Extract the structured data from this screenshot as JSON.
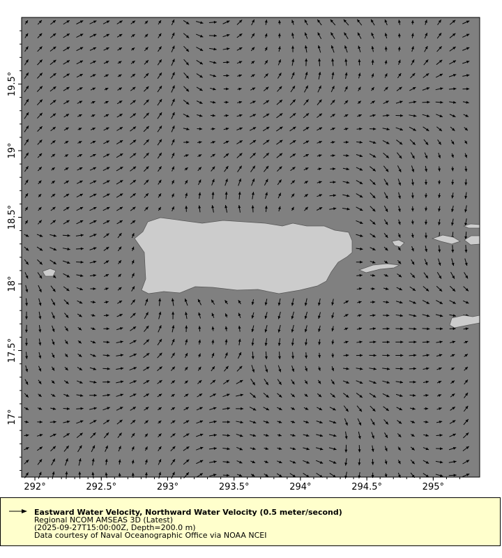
{
  "chart_data": {
    "type": "vector-map",
    "title": "Eastward Water Velocity, Northward Water Velocity (0.5 meter/second)",
    "x_axis": {
      "range": [
        291.9,
        295.35
      ],
      "ticks": [
        292,
        292.5,
        293,
        293.5,
        294,
        294.5,
        295
      ],
      "tick_labels": [
        "292°",
        "292.5°",
        "293°",
        "293.5°",
        "294°",
        "294.5°",
        "295°"
      ]
    },
    "y_axis": {
      "range": [
        16.55,
        20.0
      ],
      "ticks": [
        17,
        17.5,
        18,
        18.5,
        19,
        19.5
      ],
      "tick_labels": [
        "17°",
        "17.5°",
        "18°",
        "18.5°",
        "19°",
        "19.5°"
      ]
    },
    "reference_vector": "0.5 meter/second",
    "colors": {
      "ocean": "#808080",
      "land": "#cccccc",
      "arrows": "#000000",
      "legend_bg": "#ffffcc"
    }
  },
  "legend": {
    "line1": "Eastward Water Velocity, Northward Water Velocity (0.5 meter/second)",
    "line2": "Regional NCOM AMSEAS 3D (Latest)",
    "line3": "(2025-09-27T15:00:00Z, Depth=200.0 m)",
    "line4": "Data courtesy of Naval Oceanographic Office via NOAA NCEI"
  }
}
